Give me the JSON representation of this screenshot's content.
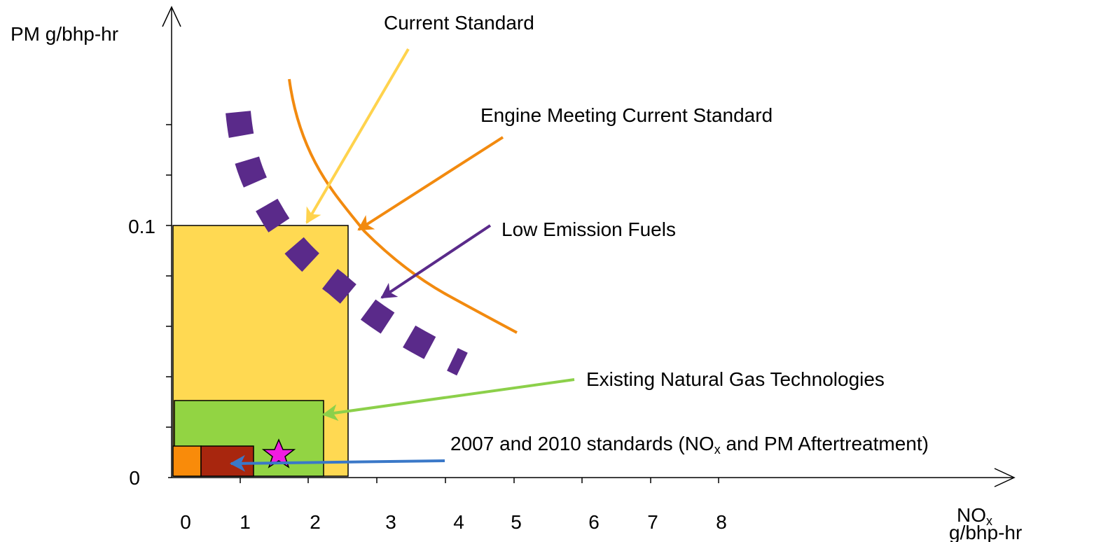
{
  "axes": {
    "y_label": "PM g/bhp-hr",
    "x_label": {
      "parts": [
        "NO",
        "x"
      ],
      "unit": "g/bhp-hr"
    },
    "y_tick_labels": [
      "0",
      "0.1"
    ],
    "x_tick_labels": [
      "0",
      "1",
      "2",
      "3",
      "4",
      "5",
      "6",
      "7",
      "8"
    ]
  },
  "annotations": {
    "current_standard": "Current  Standard",
    "engine_meeting": "Engine Meeting Current Standard",
    "low_emission_fuels": "Low Emission Fuels",
    "natural_gas": "Existing Natural Gas Technologies",
    "standards_2007_2010": [
      "2007 and 2010 standards (NO",
      "x",
      " and PM Aftertreatment)"
    ]
  }
}
